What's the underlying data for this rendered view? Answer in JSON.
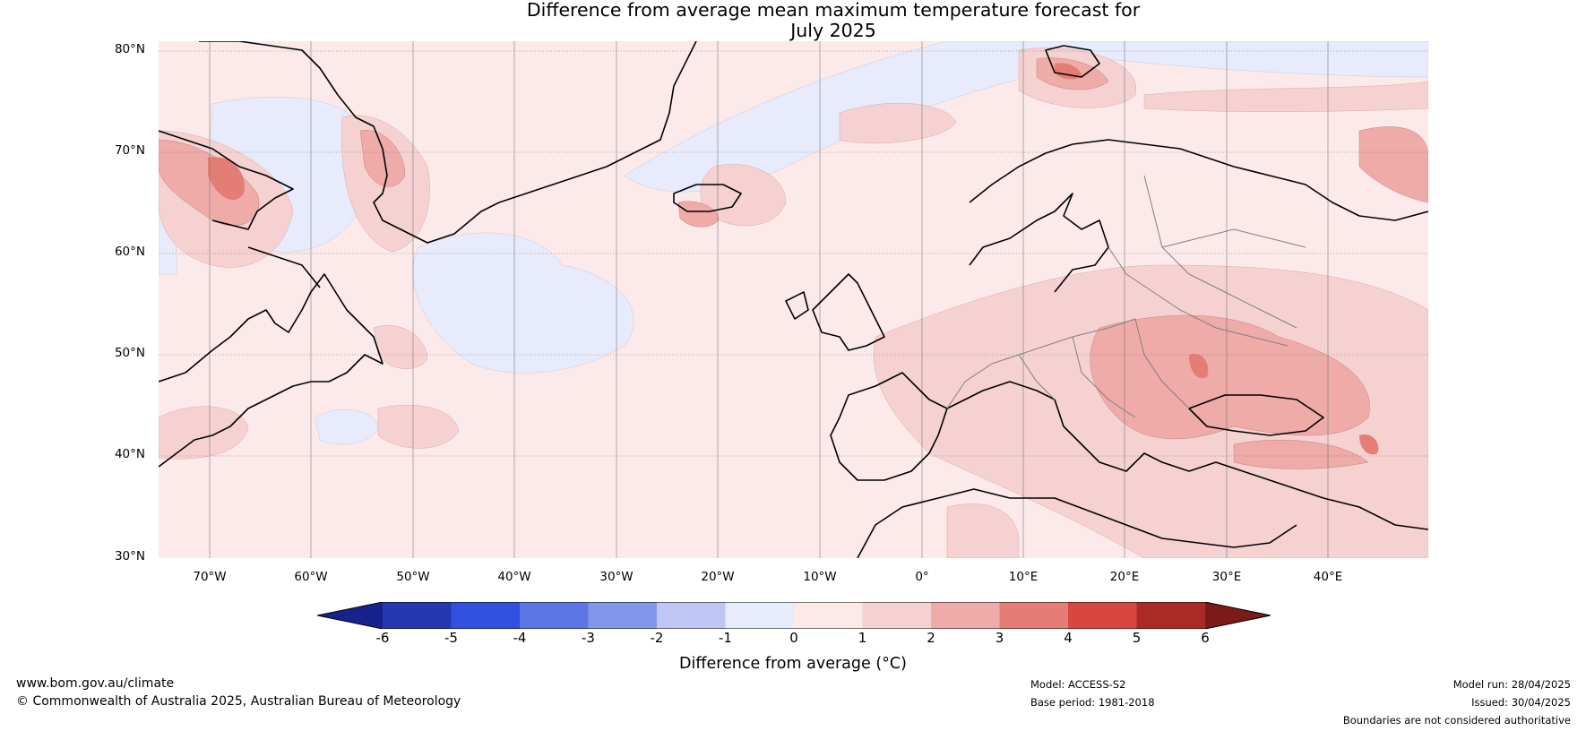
{
  "title_line1": "Difference from average mean maximum temperature forecast for",
  "title_line2": "July 2025",
  "lat_labels": [
    "80°N",
    "70°N",
    "60°N",
    "50°N",
    "40°N",
    "30°N"
  ],
  "lon_labels": [
    "70°W",
    "60°W",
    "50°W",
    "40°W",
    "30°W",
    "20°W",
    "10°W",
    "0°",
    "10°E",
    "20°E",
    "30°E",
    "40°E"
  ],
  "colorbar": {
    "ticks": [
      "-6",
      "-5",
      "-4",
      "-3",
      "-2",
      "-1",
      "0",
      "1",
      "2",
      "3",
      "4",
      "5",
      "6"
    ],
    "colors": [
      "#17228c",
      "#2538b0",
      "#3050e0",
      "#5c76e6",
      "#8496ea",
      "#bfc6f4",
      "#e8ebfb",
      "#fceaea",
      "#f5d2d1",
      "#eeaba8",
      "#e57d77",
      "#d9463e",
      "#aa2a26",
      "#7a1b1a"
    ],
    "label": "Difference from average (°C)"
  },
  "footer": {
    "website": "www.bom.gov.au/climate",
    "copyright": "© Commonwealth of Australia 2025, Australian Bureau of Meteorology",
    "model": "Model: ACCESS-S2",
    "base_period": "Base period: 1981-2018",
    "model_run": "Model run: 28/04/2025",
    "issued": "Issued: 30/04/2025",
    "disclaimer": "Boundaries are not considered authoritative"
  }
}
